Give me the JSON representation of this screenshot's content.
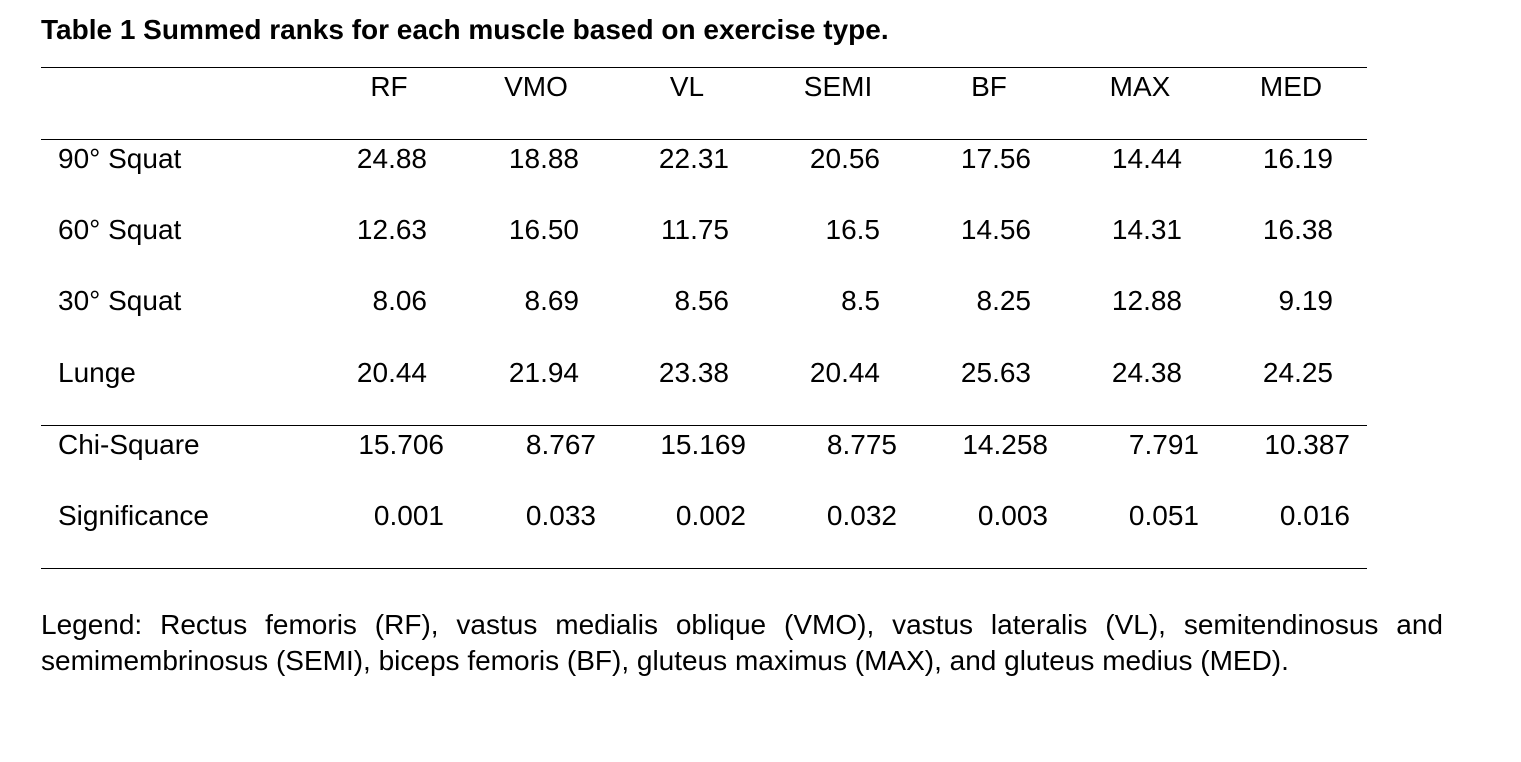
{
  "table": {
    "title": "Table 1 Summed ranks for each muscle based on exercise type.",
    "columns": [
      "RF",
      "VMO",
      "VL",
      "SEMI",
      "BF",
      "MAX",
      "MED"
    ],
    "rank_rows": [
      {
        "label": "90° Squat",
        "values": [
          "24.88",
          "18.88",
          "22.31",
          "20.56",
          "17.56",
          "14.44",
          "16.19"
        ]
      },
      {
        "label": "60° Squat",
        "values": [
          "12.63",
          "16.50",
          "11.75",
          "16.5",
          "14.56",
          "14.31",
          "16.38"
        ]
      },
      {
        "label": "30° Squat",
        "values": [
          "8.06",
          "8.69",
          "8.56",
          "8.5",
          "8.25",
          "12.88",
          "9.19"
        ]
      },
      {
        "label": "Lunge",
        "values": [
          "20.44",
          "21.94",
          "23.38",
          "20.44",
          "25.63",
          "24.38",
          "24.25"
        ]
      }
    ],
    "stat_rows": [
      {
        "label": "Chi-Square",
        "values": [
          "15.706",
          "8.767",
          "15.169",
          "8.775",
          "14.258",
          "7.791",
          "10.387"
        ]
      },
      {
        "label": "Significance",
        "values": [
          "0.001",
          "0.033",
          "0.002",
          "0.032",
          "0.003",
          "0.051",
          "0.016"
        ]
      }
    ],
    "legend": "Legend: Rectus femoris (RF), vastus medialis oblique (VMO), vastus lateralis (VL), semitendinosus and semimembrinosus (SEMI), biceps femoris (BF), gluteus maximus (MAX), and gluteus medius (MED)."
  }
}
